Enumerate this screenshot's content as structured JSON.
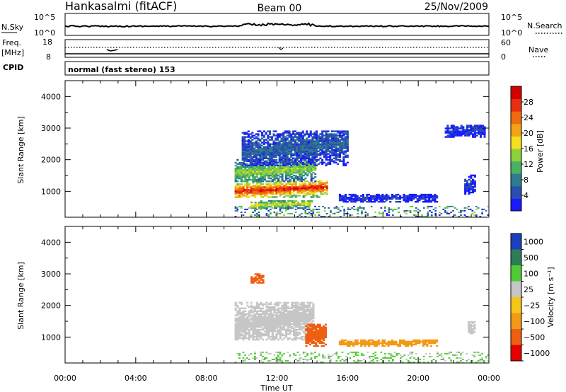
{
  "header": {
    "station": "Hankasalmi (fitACF)",
    "beam": "Beam 00",
    "date": "25/Nov/2009"
  },
  "summary_panel": {
    "nsky_label": "N.Sky",
    "nsky_ticks": [
      "10^5",
      "10^0"
    ],
    "nsearch_label": "N.Search",
    "nsearch_ticks": [
      "10^5",
      "10^0"
    ],
    "freq_label": "Freq.",
    "freq_unit": "[MHz]",
    "freq_ticks": [
      "18",
      "8"
    ],
    "nave_label": "Nave",
    "nave_ticks": [
      "60",
      "0"
    ],
    "cpid_label": "CPID",
    "cpid_value": "normal (fast stereo) 153"
  },
  "chart_data": [
    {
      "type": "heatmap",
      "name": "power",
      "ylabel": "Slant Range [km]",
      "ylim": [
        180,
        4500
      ],
      "yticks": [
        "1000",
        "2000",
        "3000",
        "4000"
      ],
      "colorbar_label": "Power [dB]",
      "colorbar_ticks": [
        "28",
        "24",
        "20",
        "16",
        "12",
        "8",
        "4"
      ],
      "color_scale": [
        "#1a1aff",
        "#2a4fb0",
        "#2f7d8c",
        "#49b064",
        "#8fd13a",
        "#f4e01e",
        "#f2a214",
        "#ef6a10",
        "#e83010",
        "#d60000"
      ],
      "echo_regions": [
        {
          "t": [
            9.6,
            14.8
          ],
          "range": [
            800,
            1300
          ],
          "level": 0.9
        },
        {
          "t": [
            9.6,
            14.2
          ],
          "range": [
            1300,
            2000
          ],
          "level": 0.45
        },
        {
          "t": [
            10.0,
            16.0
          ],
          "range": [
            1800,
            2900
          ],
          "level": 0.2
        },
        {
          "t": [
            10.5,
            14.0
          ],
          "range": [
            450,
            700
          ],
          "level": 0.55
        },
        {
          "t": [
            15.5,
            21.0
          ],
          "range": [
            650,
            900
          ],
          "level": 0.1
        },
        {
          "t": [
            22.6,
            23.2
          ],
          "range": [
            900,
            1500
          ],
          "level": 0.1
        },
        {
          "t": [
            21.5,
            23.7
          ],
          "range": [
            2700,
            3100
          ],
          "level": 0.1
        }
      ]
    },
    {
      "type": "heatmap",
      "name": "velocity",
      "ylabel": "Slant Range [km]",
      "xlabel": "Time UT",
      "ylim": [
        180,
        4500
      ],
      "yticks": [
        "1000",
        "2000",
        "3000",
        "4000"
      ],
      "xticks": [
        "00:00",
        "04:00",
        "08:00",
        "12:00",
        "16:00",
        "20:00",
        "00:00"
      ],
      "colorbar_label": "Velocity [m s⁻¹]",
      "colorbar_ticks": [
        "1000",
        "500",
        "100",
        "25",
        "−25",
        "−100",
        "−500",
        "−1000"
      ],
      "color_scale": [
        "#1a3fbf",
        "#2e7d5a",
        "#4fcc34",
        "#c6c6c6",
        "#f5c518",
        "#f29a16",
        "#ee5f12",
        "#e60000"
      ],
      "echo_regions": [
        {
          "t": [
            9.6,
            14.0
          ],
          "range": [
            900,
            2100
          ],
          "value": 0
        },
        {
          "t": [
            13.6,
            14.7
          ],
          "range": [
            700,
            1400
          ],
          "value": -450
        },
        {
          "t": [
            10.5,
            11.2
          ],
          "range": [
            2700,
            3000
          ],
          "value": -600
        },
        {
          "t": [
            15.5,
            21.0
          ],
          "range": [
            700,
            900
          ],
          "value": -80
        },
        {
          "t": [
            22.8,
            23.2
          ],
          "range": [
            1100,
            1500
          ],
          "value": 0
        }
      ]
    }
  ]
}
